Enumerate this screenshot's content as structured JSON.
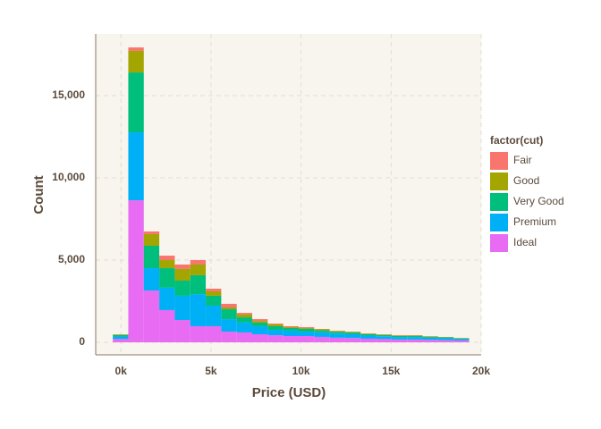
{
  "chart_data": {
    "type": "histogram",
    "x_label": "Price (USD)",
    "y_label": "Count",
    "legend_title": "factor(cut)",
    "bins": [
      -450,
      410,
      1270,
      2130,
      2990,
      3850,
      4710,
      5570,
      6430,
      7290,
      8150,
      9010,
      9870,
      10730,
      11590,
      12450,
      13310,
      14170,
      15030,
      15890,
      16750,
      17610,
      18470,
      19330
    ],
    "stacked": true,
    "grid": true,
    "legend": "right",
    "series": [
      {
        "name": "Ideal",
        "color": "#E76BF3",
        "values": [
          200,
          8640,
          3150,
          1960,
          1360,
          980,
          980,
          650,
          600,
          490,
          430,
          380,
          380,
          330,
          280,
          260,
          220,
          200,
          170,
          170,
          150,
          130,
          110
        ]
      },
      {
        "name": "Premium",
        "color": "#00B0F6",
        "values": [
          150,
          4130,
          1360,
          1360,
          1470,
          1950,
          1250,
          760,
          600,
          490,
          330,
          330,
          270,
          280,
          250,
          230,
          190,
          170,
          150,
          150,
          130,
          120,
          90
        ]
      },
      {
        "name": "Very Good",
        "color": "#00BF7D",
        "values": [
          100,
          3640,
          1360,
          1190,
          920,
          1150,
          600,
          600,
          320,
          220,
          220,
          160,
          170,
          120,
          110,
          100,
          80,
          70,
          70,
          60,
          60,
          50,
          40
        ]
      },
      {
        "name": "Good",
        "color": "#A3A500",
        "values": [
          30,
          1310,
          710,
          490,
          710,
          650,
          270,
          110,
          170,
          100,
          110,
          50,
          50,
          60,
          40,
          40,
          30,
          30,
          30,
          30,
          25,
          20,
          20
        ]
      },
      {
        "name": "Fair",
        "color": "#F8766D",
        "values": [
          10,
          210,
          160,
          270,
          270,
          270,
          160,
          220,
          100,
          110,
          50,
          60,
          50,
          25,
          20,
          20,
          20,
          20,
          20,
          20,
          15,
          10,
          10
        ]
      }
    ],
    "xlim": [
      -1400,
      20000
    ],
    "xticks": [
      {
        "value": 0,
        "label": "0k"
      },
      {
        "value": 5000,
        "label": "5k"
      },
      {
        "value": 10000,
        "label": "10k"
      },
      {
        "value": 15000,
        "label": "15k"
      },
      {
        "value": 20000,
        "label": "20k"
      }
    ],
    "ylim": [
      -760,
      18750
    ],
    "yticks": [
      0,
      {
        "value": 5000,
        "label": "5,000"
      },
      {
        "value": 10000,
        "label": "10,000"
      },
      {
        "value": 15000,
        "label": "15,000"
      }
    ]
  }
}
